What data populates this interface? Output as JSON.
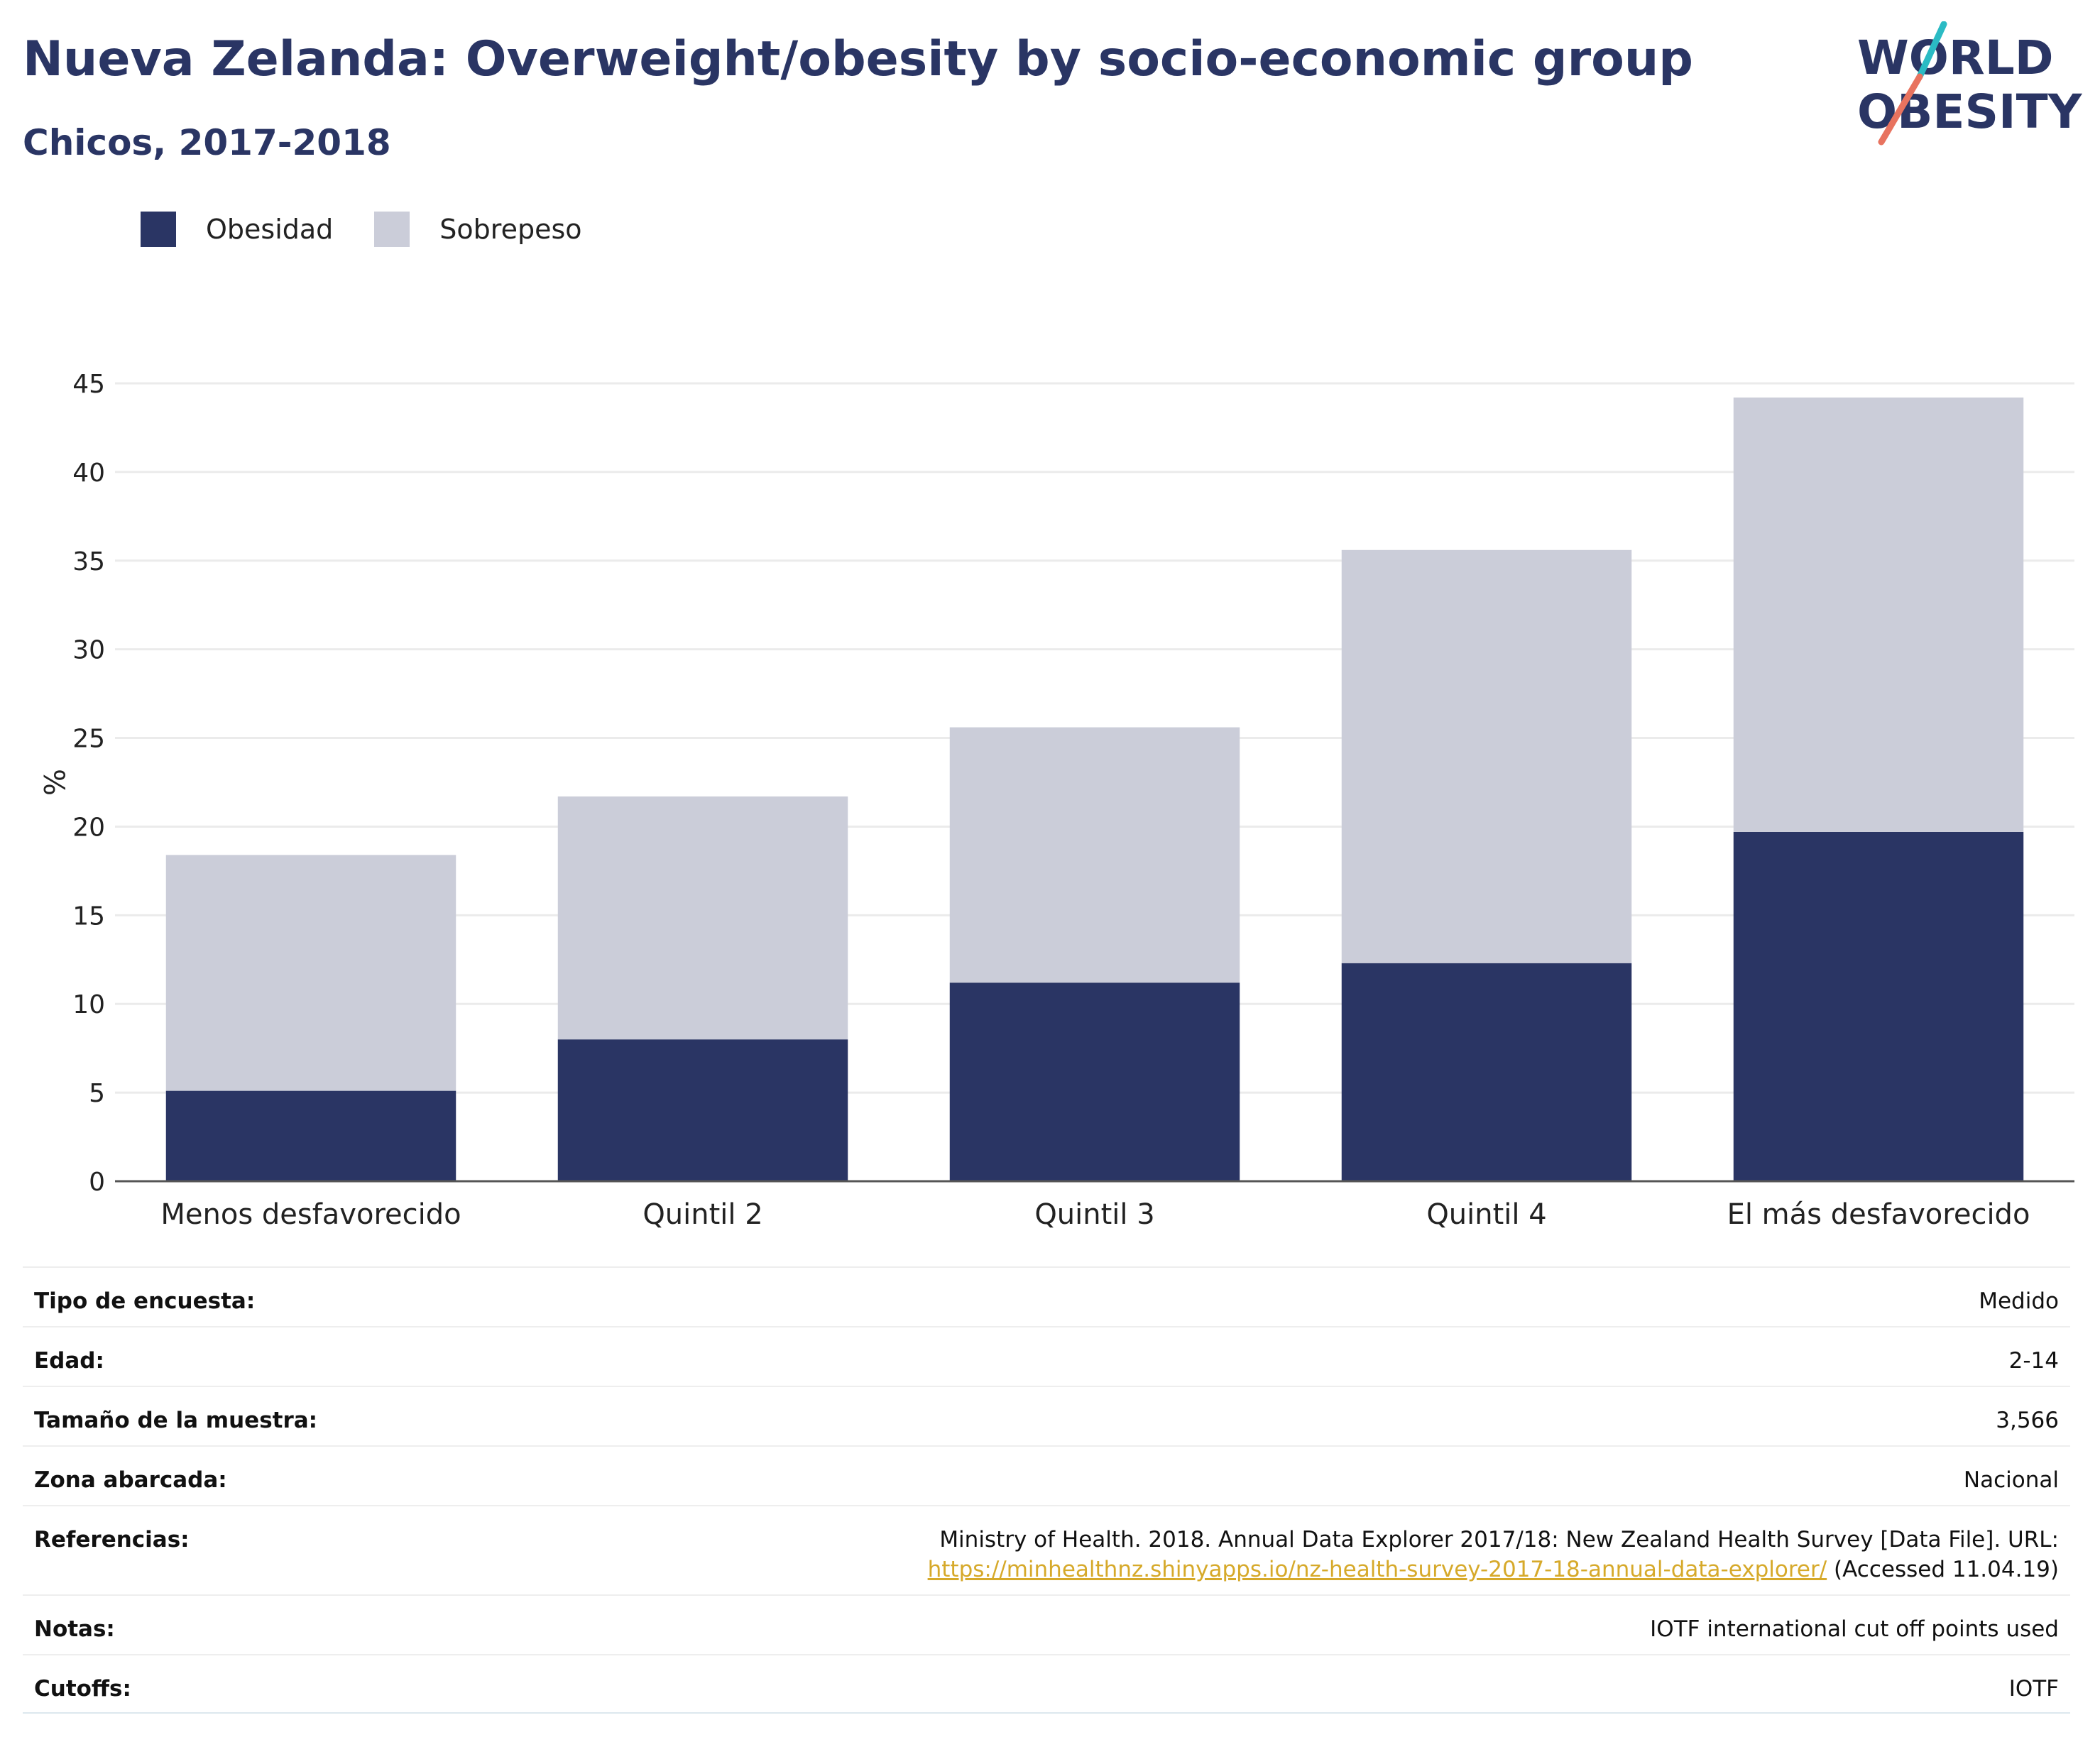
{
  "header": {
    "title": "Nueva Zelanda: Overweight/obesity by socio-economic group",
    "subtitle": "Chicos, 2017-2018"
  },
  "logo": {
    "line1": "WORLD",
    "line2": "OBESITY",
    "accent_colors": [
      "#2bbbc4",
      "#e8735f"
    ]
  },
  "colors": {
    "obesity": "#2a3564",
    "overweight": "#cbcdd9",
    "title": "#2a3564",
    "link": "#d6a92a"
  },
  "chart_data": {
    "type": "bar",
    "stacked": true,
    "categories": [
      "Menos desfavorecido",
      "Quintil 2",
      "Quintil 3",
      "Quintil 4",
      "El más desfavorecido"
    ],
    "series": [
      {
        "name": "Obesidad",
        "values": [
          5.1,
          8.0,
          11.2,
          12.3,
          19.7
        ]
      },
      {
        "name": "Sobrepeso",
        "values": [
          13.3,
          13.7,
          14.4,
          23.3,
          24.5
        ]
      }
    ],
    "ylabel": "%",
    "ylim": [
      0,
      45
    ],
    "yticks": [
      0,
      5,
      10,
      15,
      20,
      25,
      30,
      35,
      40,
      45
    ],
    "grid": true,
    "legend_position": "top-left"
  },
  "meta": [
    {
      "key": "Tipo de encuesta:",
      "value": "Medido"
    },
    {
      "key": "Edad:",
      "value": "2-14"
    },
    {
      "key": "Tamaño de la muestra:",
      "value": "3,566"
    },
    {
      "key": "Zona abarcada:",
      "value": "Nacional"
    },
    {
      "key": "Referencias:",
      "value": "Ministry of Health. 2018. Annual Data Explorer 2017/18: New Zealand Health Survey [Data File]. URL:",
      "link": "https://minhealthnz.shinyapps.io/nz-health-survey-2017-18-annual-data-explorer/",
      "suffix": " (Accessed 11.04.19)"
    },
    {
      "key": "Notas:",
      "value": "IOTF international cut off points used"
    },
    {
      "key": "Cutoffs:",
      "value": "IOTF"
    }
  ]
}
